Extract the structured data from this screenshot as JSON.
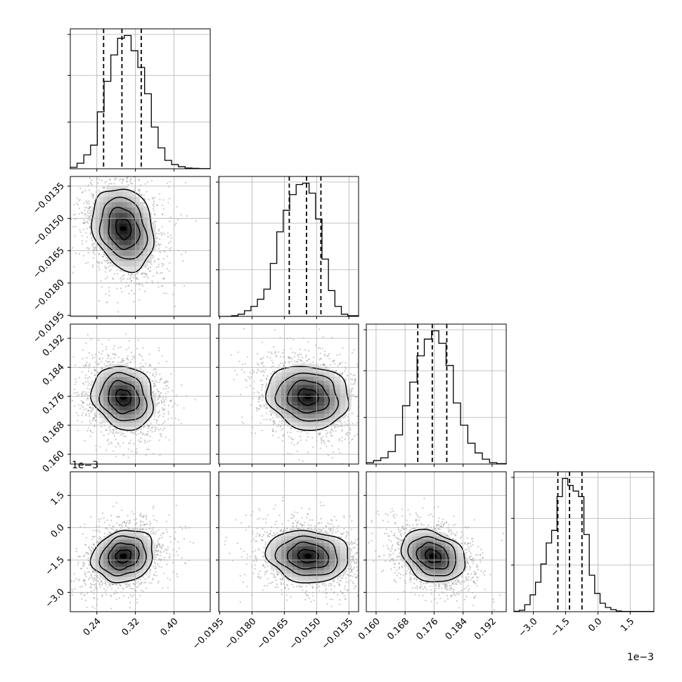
{
  "chart_data": {
    "type": "corner",
    "title": "",
    "parameters": [
      {
        "label": "",
        "range": [
          0.185,
          0.475
        ],
        "ticks": [
          0.24,
          0.32,
          0.4
        ],
        "tick_labels": [
          "0.24",
          "0.32",
          "0.40"
        ],
        "quantiles": [
          0.254,
          0.292,
          0.332
        ],
        "hist_bin_edges": [
          0.185,
          0.199,
          0.213,
          0.227,
          0.241,
          0.255,
          0.269,
          0.283,
          0.297,
          0.311,
          0.325,
          0.339,
          0.353,
          0.367,
          0.381,
          0.395,
          0.409,
          0.423,
          0.437,
          0.451,
          0.465,
          0.475
        ],
        "hist_values": [
          1,
          4,
          10,
          17,
          41,
          63,
          82,
          94,
          96,
          85,
          73,
          54,
          30,
          15,
          6,
          3,
          1.5,
          0.5,
          0.3,
          0.1,
          0.1
        ],
        "offset_label": ""
      },
      {
        "label": "",
        "range": [
          -0.01955,
          -0.01305
        ],
        "ticks": [
          -0.0195,
          -0.018,
          -0.0165,
          -0.015,
          -0.0135
        ],
        "tick_labels": [
          "−0.0195",
          "−0.0180",
          "−0.0165",
          "−0.0150",
          "−0.0135"
        ],
        "quantiles": [
          -0.01627,
          -0.01547,
          -0.0148
        ],
        "hist_bin_edges": [
          -0.01955,
          -0.01925,
          -0.01895,
          -0.01865,
          -0.01835,
          -0.01805,
          -0.01775,
          -0.01745,
          -0.01715,
          -0.01685,
          -0.01655,
          -0.01625,
          -0.01595,
          -0.01565,
          -0.01535,
          -0.01505,
          -0.01475,
          -0.01445,
          -0.01415,
          -0.01385,
          -0.01355,
          -0.01305
        ],
        "hist_values": [
          0,
          0,
          0.5,
          1.5,
          4,
          7,
          12,
          19,
          37,
          59,
          74,
          85,
          92,
          93,
          86,
          68,
          40,
          18,
          7,
          1.5,
          0.5
        ],
        "offset_label": ""
      },
      {
        "label": "",
        "range": [
          0.1573,
          0.1959
        ],
        "ticks": [
          0.16,
          0.168,
          0.176,
          0.184,
          0.192
        ],
        "tick_labels": [
          "0.160",
          "0.168",
          "0.176",
          "0.184",
          "0.192"
        ],
        "quantiles": [
          0.1715,
          0.1755,
          0.1795
        ],
        "hist_bin_edges": [
          0.1573,
          0.1593,
          0.1613,
          0.1633,
          0.1653,
          0.1673,
          0.1693,
          0.1713,
          0.1733,
          0.1753,
          0.1773,
          0.1793,
          0.1813,
          0.1833,
          0.1853,
          0.1873,
          0.1893,
          0.1913,
          0.1933,
          0.1959
        ],
        "hist_values": [
          1,
          2.5,
          4.5,
          9,
          21,
          42,
          59,
          78,
          90,
          96,
          87,
          71,
          44,
          28,
          15,
          8,
          3.5,
          1,
          0.3
        ],
        "offset_label": ""
      },
      {
        "label": "",
        "range": [
          -0.0039,
          0.0026
        ],
        "ticks": [
          -0.003,
          -0.0015,
          0.0,
          0.0015
        ],
        "tick_labels": [
          "−3.0",
          "−1.5",
          "0.0",
          "1.5"
        ],
        "quantiles": [
          -0.00186,
          -0.00132,
          -0.00074
        ],
        "hist_bin_edges": [
          -0.0039,
          -0.00365,
          -0.0034,
          -0.00315,
          -0.0029,
          -0.00265,
          -0.0024,
          -0.00215,
          -0.0019,
          -0.00165,
          -0.0014,
          -0.00115,
          -0.0009,
          -0.00065,
          -0.0004,
          -0.00015,
          0.0001,
          0.00035,
          0.0006,
          0.00085,
          0.0011,
          0.0026
        ],
        "hist_values": [
          0.3,
          1,
          5,
          12,
          21,
          34,
          49,
          58,
          82,
          95,
          90,
          86,
          82,
          55,
          26,
          13,
          6,
          3,
          1.5,
          0.5,
          0.2
        ],
        "offset_label": "1e−3"
      }
    ],
    "pairs": [
      {
        "x": 0,
        "y": 1,
        "center": [
          0.295,
          -0.01547
        ],
        "sigma": [
          0.029,
          0.00087
        ],
        "rho": -0.2
      },
      {
        "x": 0,
        "y": 2,
        "center": [
          0.295,
          0.1757
        ],
        "sigma": [
          0.029,
          0.004
        ],
        "rho": -0.15
      },
      {
        "x": 1,
        "y": 2,
        "center": [
          -0.0154,
          0.1758
        ],
        "sigma": [
          0.00087,
          0.004
        ],
        "rho": -0.1
      },
      {
        "x": 0,
        "y": 3,
        "center": [
          0.295,
          -0.00132
        ],
        "sigma": [
          0.029,
          0.00055
        ],
        "rho": 0.15
      },
      {
        "x": 1,
        "y": 3,
        "center": [
          -0.0154,
          -0.00132
        ],
        "sigma": [
          0.00087,
          0.00055
        ],
        "rho": -0.1
      },
      {
        "x": 2,
        "y": 3,
        "center": [
          0.1757,
          -0.00132
        ],
        "sigma": [
          0.004,
          0.00055
        ],
        "rho": -0.25
      }
    ],
    "contour_levels_sigma": [
      0.5,
      1.0,
      1.5,
      2.0
    ],
    "grid": true
  }
}
